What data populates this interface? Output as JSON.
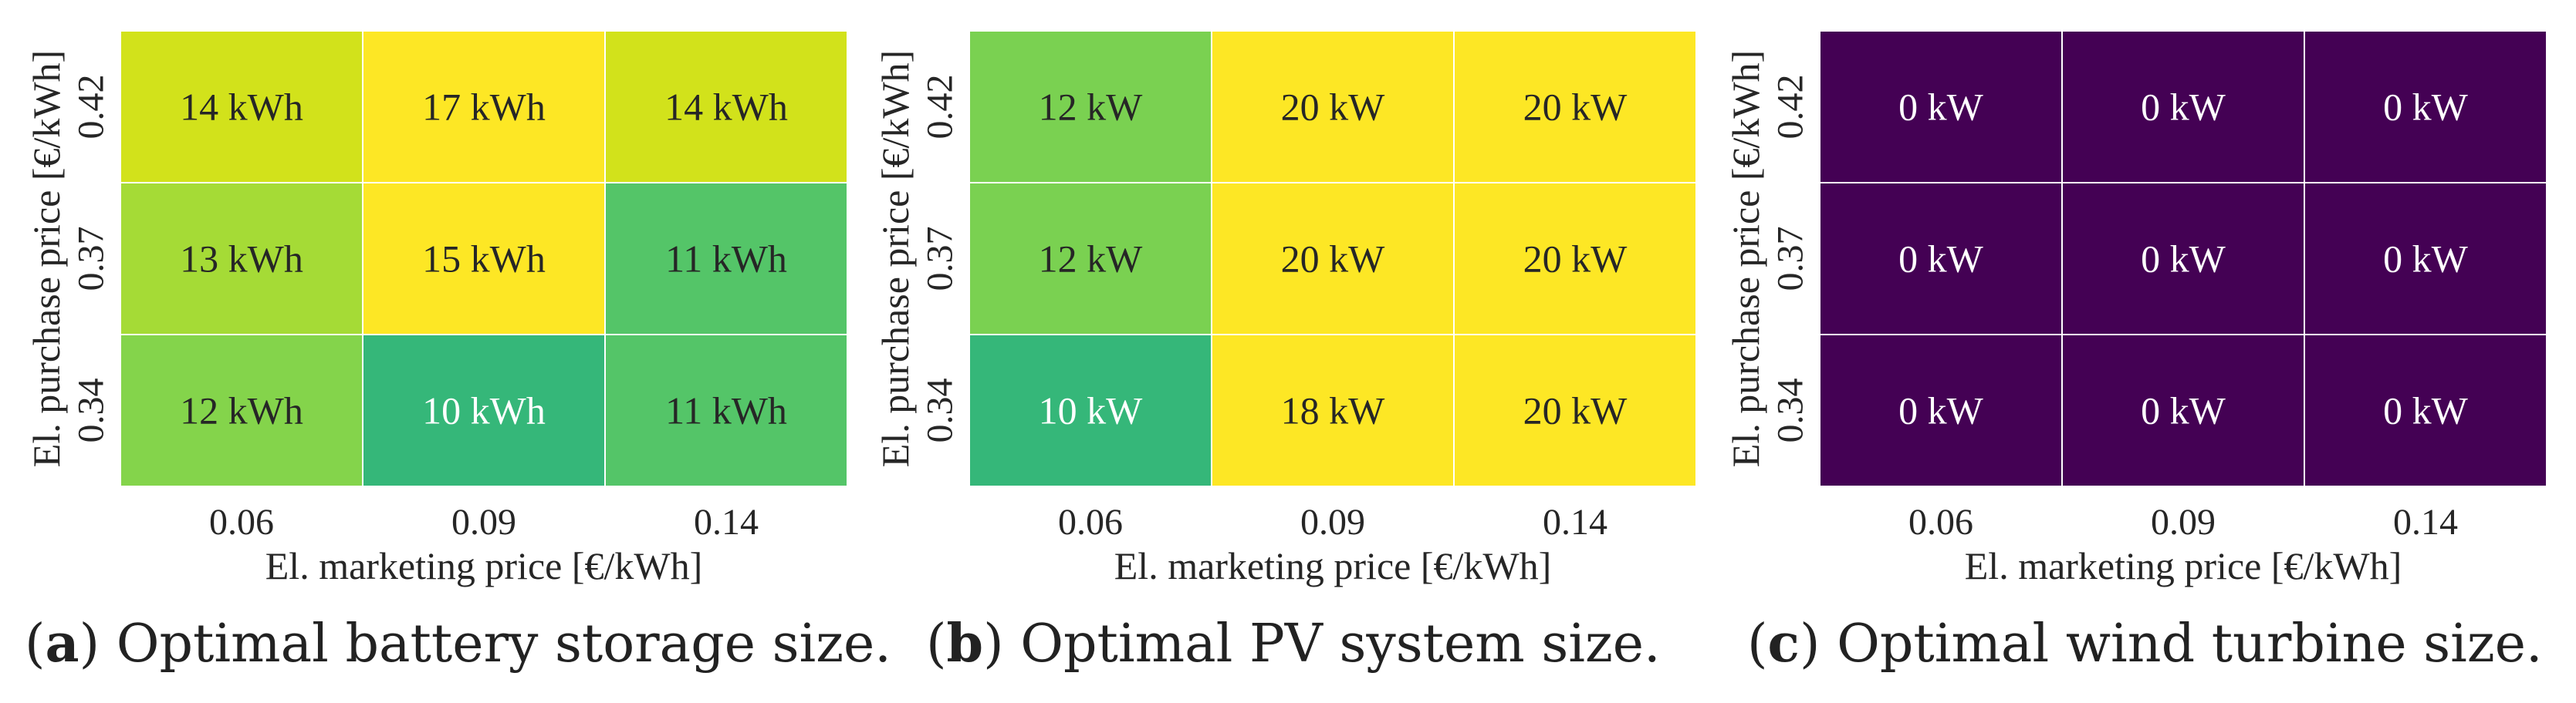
{
  "chart_data": [
    {
      "type": "heatmap",
      "panel": "a",
      "caption_label": "a",
      "caption_text": "Optimal battery storage size.",
      "xlabel": "El. marketing price [€/kWh]",
      "ylabel": "El. purchase price [€/kWh]",
      "x_categories": [
        "0.06",
        "0.09",
        "0.14"
      ],
      "y_categories": [
        "0.42",
        "0.37",
        "0.34"
      ],
      "unit": "kWh",
      "values": [
        [
          14,
          17,
          14
        ],
        [
          13,
          15,
          11
        ],
        [
          12,
          10,
          11
        ]
      ],
      "cell_labels": [
        [
          "14 kWh",
          "17 kWh",
          "14 kWh"
        ],
        [
          "13 kWh",
          "15 kWh",
          "11 kWh"
        ],
        [
          "12 kWh",
          "10 kWh",
          "11 kWh"
        ]
      ],
      "cell_colors": [
        [
          "#d2e21b",
          "#fde725",
          "#d2e21b"
        ],
        [
          "#a5db36",
          "#fde725",
          "#54c568"
        ],
        [
          "#84d44b",
          "#35b779",
          "#54c568"
        ]
      ],
      "text_colors": [
        [
          "#262626",
          "#262626",
          "#262626"
        ],
        [
          "#262626",
          "#262626",
          "#262626"
        ],
        [
          "#262626",
          "#ffffff",
          "#262626"
        ]
      ]
    },
    {
      "type": "heatmap",
      "panel": "b",
      "caption_label": "b",
      "caption_text": "Optimal PV system size.",
      "xlabel": "El. marketing price [€/kWh]",
      "ylabel": "El. purchase price [€/kWh]",
      "x_categories": [
        "0.06",
        "0.09",
        "0.14"
      ],
      "y_categories": [
        "0.42",
        "0.37",
        "0.34"
      ],
      "unit": "kW",
      "values": [
        [
          12,
          20,
          20
        ],
        [
          12,
          20,
          20
        ],
        [
          10,
          18,
          20
        ]
      ],
      "cell_labels": [
        [
          "12 kW",
          "20 kW",
          "20 kW"
        ],
        [
          "12 kW",
          "20 kW",
          "20 kW"
        ],
        [
          "10 kW",
          "18 kW",
          "20 kW"
        ]
      ],
      "cell_colors": [
        [
          "#7ad151",
          "#fde725",
          "#fde725"
        ],
        [
          "#7ad151",
          "#fde725",
          "#fde725"
        ],
        [
          "#35b779",
          "#fde725",
          "#fde725"
        ]
      ],
      "text_colors": [
        [
          "#262626",
          "#262626",
          "#262626"
        ],
        [
          "#262626",
          "#262626",
          "#262626"
        ],
        [
          "#ffffff",
          "#262626",
          "#262626"
        ]
      ]
    },
    {
      "type": "heatmap",
      "panel": "c",
      "caption_label": "c",
      "caption_text": "Optimal wind turbine size.",
      "xlabel": "El. marketing price [€/kWh]",
      "ylabel": "El. purchase price [€/kWh]",
      "x_categories": [
        "0.06",
        "0.09",
        "0.14"
      ],
      "y_categories": [
        "0.42",
        "0.37",
        "0.34"
      ],
      "unit": "kW",
      "values": [
        [
          0,
          0,
          0
        ],
        [
          0,
          0,
          0
        ],
        [
          0,
          0,
          0
        ]
      ],
      "cell_labels": [
        [
          "0 kW",
          "0 kW",
          "0 kW"
        ],
        [
          "0 kW",
          "0 kW",
          "0 kW"
        ],
        [
          "0 kW",
          "0 kW",
          "0 kW"
        ]
      ],
      "cell_colors": [
        [
          "#440154",
          "#440154",
          "#440154"
        ],
        [
          "#440154",
          "#440154",
          "#440154"
        ],
        [
          "#440154",
          "#440154",
          "#440154"
        ]
      ],
      "text_colors": [
        [
          "#ffffff",
          "#ffffff",
          "#ffffff"
        ],
        [
          "#ffffff",
          "#ffffff",
          "#ffffff"
        ],
        [
          "#ffffff",
          "#ffffff",
          "#ffffff"
        ]
      ]
    }
  ]
}
